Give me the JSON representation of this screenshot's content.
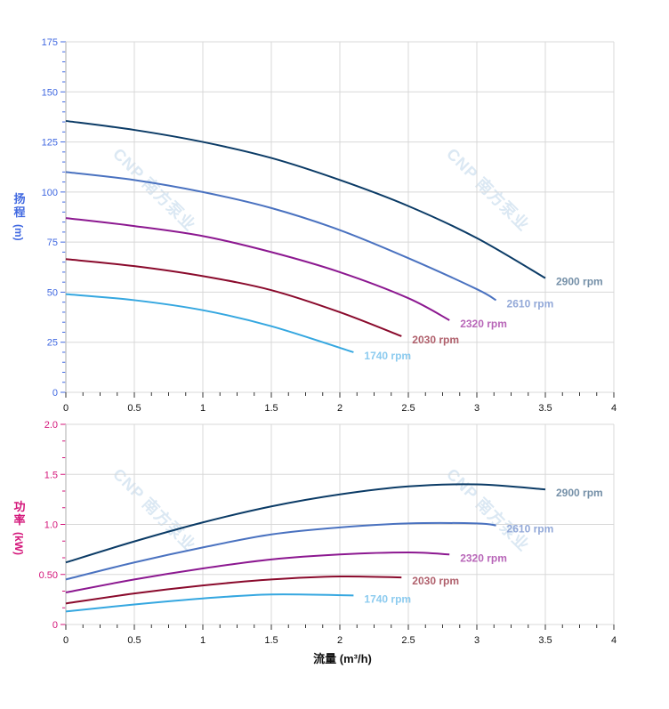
{
  "watermark": "CNP 南方泵业",
  "chart_data": [
    {
      "type": "line",
      "title": "",
      "ylabel": "扬程",
      "yunit": "(m)",
      "xlim": [
        0,
        4
      ],
      "ylim": [
        0,
        175
      ],
      "xticks": [
        "0",
        "0.5",
        "1",
        "1.5",
        "2",
        "2.5",
        "3",
        "3.5",
        "4"
      ],
      "yticks": [
        "0",
        "25",
        "50",
        "75",
        "100",
        "125",
        "150",
        "175"
      ],
      "grid": true,
      "axis_color": "#4169e1",
      "series": [
        {
          "name": "2900 rpm",
          "color": "#0b3b66",
          "label_color": "#7590a8",
          "x": [
            0,
            0.5,
            1,
            1.5,
            2,
            2.5,
            3,
            3.5
          ],
          "y": [
            135.5,
            131,
            125,
            117,
            106,
            93,
            77,
            57
          ]
        },
        {
          "name": "2610 rpm",
          "color": "#4a72c0",
          "label_color": "#93a9d8",
          "x": [
            0,
            0.5,
            1,
            1.5,
            2,
            2.5,
            3,
            3.14
          ],
          "y": [
            110,
            106,
            100,
            92,
            81,
            67,
            51.5,
            46
          ]
        },
        {
          "name": "2320 rpm",
          "color": "#8c1890",
          "label_color": "#b866b8",
          "x": [
            0,
            0.5,
            1,
            1.5,
            2,
            2.5,
            2.8
          ],
          "y": [
            87,
            83,
            78,
            70,
            60,
            47,
            36
          ]
        },
        {
          "name": "2030 rpm",
          "color": "#8a0a2c",
          "label_color": "#b0606c",
          "x": [
            0,
            0.5,
            1,
            1.5,
            2,
            2.45
          ],
          "y": [
            66.5,
            63,
            58,
            51,
            40,
            28
          ]
        },
        {
          "name": "1740 rpm",
          "color": "#35a7e0",
          "label_color": "#8ccbef",
          "x": [
            0,
            0.5,
            1,
            1.5,
            2.1
          ],
          "y": [
            49,
            46,
            41,
            33,
            20
          ]
        }
      ]
    },
    {
      "type": "line",
      "title": "",
      "xlabel": "流量 (m³/h)",
      "ylabel": "功率",
      "yunit": "(kW)",
      "xlim": [
        0,
        4
      ],
      "ylim": [
        0,
        2.0
      ],
      "xticks": [
        "0",
        "0.5",
        "1",
        "1.5",
        "2",
        "2.5",
        "3",
        "3.5",
        "4"
      ],
      "yticks": [
        "0",
        "0.50",
        "1.0",
        "1.5",
        "2.0"
      ],
      "grid": true,
      "axis_color": "#d4167a",
      "series": [
        {
          "name": "2900 rpm",
          "color": "#0b3b66",
          "label_color": "#7590a8",
          "x": [
            0,
            0.5,
            1,
            1.5,
            2,
            2.5,
            3,
            3.5
          ],
          "y": [
            0.62,
            0.83,
            1.02,
            1.18,
            1.3,
            1.38,
            1.4,
            1.35
          ]
        },
        {
          "name": "2610 rpm",
          "color": "#4a72c0",
          "label_color": "#93a9d8",
          "x": [
            0,
            0.5,
            1,
            1.5,
            2,
            2.5,
            3,
            3.14
          ],
          "y": [
            0.45,
            0.62,
            0.77,
            0.9,
            0.97,
            1.01,
            1.01,
            0.99
          ]
        },
        {
          "name": "2320 rpm",
          "color": "#8c1890",
          "label_color": "#b866b8",
          "x": [
            0,
            0.5,
            1,
            1.5,
            2,
            2.5,
            2.8
          ],
          "y": [
            0.32,
            0.45,
            0.56,
            0.65,
            0.7,
            0.72,
            0.7
          ]
        },
        {
          "name": "2030 rpm",
          "color": "#8a0a2c",
          "label_color": "#b0606c",
          "x": [
            0,
            0.5,
            1,
            1.5,
            2,
            2.45
          ],
          "y": [
            0.21,
            0.31,
            0.39,
            0.45,
            0.48,
            0.47
          ]
        },
        {
          "name": "1740 rpm",
          "color": "#35a7e0",
          "label_color": "#8ccbef",
          "x": [
            0,
            0.5,
            1,
            1.5,
            2.1
          ],
          "y": [
            0.13,
            0.2,
            0.26,
            0.3,
            0.29
          ]
        }
      ]
    }
  ]
}
